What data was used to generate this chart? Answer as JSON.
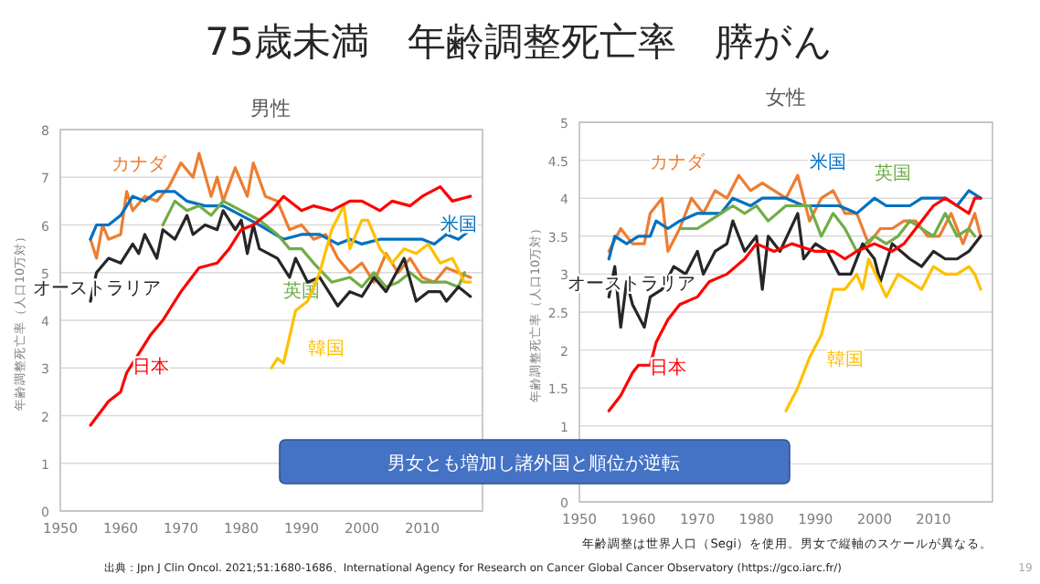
{
  "chart_data": [
    {
      "type": "line",
      "title": "男性",
      "ylabel": "年齢調整死亡率（人口10万対）",
      "xlim": [
        1950,
        2020
      ],
      "xticks": [
        1950,
        1960,
        1970,
        1980,
        1990,
        2000,
        2010
      ],
      "ylim": [
        0,
        8
      ],
      "yticks": [
        0,
        1,
        2,
        3,
        4,
        5,
        6,
        7,
        8
      ],
      "grid": "y",
      "legend": false,
      "marker": "none",
      "line_style": "solid",
      "annotations": [
        "75歳未満　年齢調整死亡率　膵がん",
        "男女とも増加し諸外国と順位が逆転"
      ],
      "series": [
        {
          "name": "カナダ",
          "color": "#ed7d31",
          "x": [
            1955,
            1956,
            1957,
            1958,
            1960,
            1961,
            1962,
            1964,
            1966,
            1968,
            1970,
            1972,
            1973,
            1975,
            1976,
            1977,
            1979,
            1981,
            1982,
            1984,
            1986,
            1988,
            1990,
            1992,
            1994,
            1996,
            1998,
            2000,
            2002,
            2004,
            2006,
            2008,
            2010,
            2012,
            2014,
            2016,
            2018
          ],
          "values": [
            5.7,
            5.3,
            6.0,
            5.7,
            5.8,
            6.7,
            6.3,
            6.6,
            6.5,
            6.8,
            7.3,
            7.0,
            7.5,
            6.6,
            7.0,
            6.5,
            7.2,
            6.6,
            7.3,
            6.6,
            6.5,
            5.9,
            6.0,
            5.7,
            5.8,
            5.3,
            5.0,
            5.2,
            4.8,
            5.4,
            5.0,
            5.3,
            4.9,
            4.8,
            5.1,
            5.0,
            4.9
          ]
        },
        {
          "name": "米国",
          "color": "#0070c0",
          "x": [
            1955,
            1956,
            1958,
            1960,
            1962,
            1964,
            1966,
            1969,
            1971,
            1974,
            1977,
            1980,
            1983,
            1987,
            1990,
            1993,
            1996,
            1998,
            2000,
            2003,
            2006,
            2010,
            2012,
            2014,
            2016,
            2018
          ],
          "values": [
            5.7,
            6.0,
            6.0,
            6.2,
            6.6,
            6.5,
            6.7,
            6.7,
            6.5,
            6.4,
            6.4,
            6.2,
            6.0,
            5.7,
            5.8,
            5.8,
            5.6,
            5.7,
            5.6,
            5.7,
            5.7,
            5.7,
            5.6,
            5.8,
            5.7,
            5.9
          ]
        },
        {
          "name": "英国",
          "color": "#70ad47",
          "x": [
            1967,
            1969,
            1971,
            1973,
            1975,
            1977,
            1980,
            1983,
            1986,
            1988,
            1990,
            1992,
            1995,
            1998,
            2000,
            2002,
            2004,
            2006,
            2008,
            2010,
            2012,
            2014,
            2016,
            2017
          ],
          "values": [
            6.0,
            6.5,
            6.3,
            6.4,
            6.2,
            6.5,
            6.3,
            6.1,
            5.8,
            5.5,
            5.5,
            5.2,
            4.8,
            4.9,
            4.7,
            5.0,
            4.7,
            4.8,
            5.0,
            4.8,
            4.8,
            4.8,
            4.7,
            5.0
          ]
        },
        {
          "name": "オーストラリア",
          "color": "#262626",
          "x": [
            1955,
            1956,
            1958,
            1960,
            1962,
            1963,
            1964,
            1966,
            1967,
            1969,
            1971,
            1972,
            1974,
            1976,
            1977,
            1979,
            1980,
            1981,
            1982,
            1983,
            1986,
            1988,
            1989,
            1991,
            1993,
            1995,
            1996,
            1998,
            2000,
            2002,
            2004,
            2007,
            2009,
            2011,
            2013,
            2014,
            2016,
            2018
          ],
          "values": [
            4.4,
            5.0,
            5.3,
            5.2,
            5.6,
            5.4,
            5.8,
            5.3,
            5.9,
            5.7,
            6.2,
            5.8,
            6.0,
            5.9,
            6.3,
            5.9,
            6.1,
            5.4,
            6.0,
            5.5,
            5.3,
            4.9,
            5.3,
            4.8,
            4.9,
            4.5,
            4.3,
            4.6,
            4.5,
            4.9,
            4.6,
            5.3,
            4.4,
            4.6,
            4.6,
            4.4,
            4.7,
            4.5
          ]
        },
        {
          "name": "韓国",
          "color": "#ffc000",
          "x": [
            1985,
            1986,
            1987,
            1989,
            1991,
            1993,
            1995,
            1997,
            1998,
            2000,
            2001,
            2003,
            2005,
            2007,
            2009,
            2011,
            2013,
            2015,
            2017,
            2018
          ],
          "values": [
            3.0,
            3.2,
            3.1,
            4.2,
            4.4,
            5.0,
            5.9,
            6.4,
            5.5,
            6.1,
            6.1,
            5.5,
            5.2,
            5.5,
            5.4,
            5.6,
            5.2,
            5.3,
            4.8,
            4.8
          ]
        },
        {
          "name": "日本",
          "color": "#ff0000",
          "x": [
            1955,
            1958,
            1960,
            1961,
            1963,
            1965,
            1967,
            1970,
            1973,
            1976,
            1978,
            1980,
            1982,
            1985,
            1987,
            1990,
            1992,
            1995,
            1998,
            2000,
            2003,
            2005,
            2008,
            2010,
            2013,
            2015,
            2018
          ],
          "values": [
            1.8,
            2.3,
            2.5,
            2.9,
            3.3,
            3.7,
            4.0,
            4.6,
            5.1,
            5.2,
            5.5,
            5.9,
            6.0,
            6.3,
            6.6,
            6.3,
            6.4,
            6.3,
            6.5,
            6.5,
            6.3,
            6.5,
            6.4,
            6.6,
            6.8,
            6.5,
            6.6
          ]
        }
      ]
    },
    {
      "type": "line",
      "title": "女性",
      "ylabel": "年齢調整死亡率（人口10万対）",
      "xlim": [
        1950,
        2020
      ],
      "xticks": [
        1950,
        1960,
        1970,
        1980,
        1990,
        2000,
        2010
      ],
      "ylim": [
        0,
        5
      ],
      "yticks": [
        0,
        {
          "value": 0.5,
          "label": null
        },
        1,
        1.5,
        2,
        2.5,
        3,
        3.5,
        4,
        4.5,
        5
      ],
      "grid": "y",
      "legend": false,
      "marker": "none",
      "line_style": "solid",
      "annotations": [
        "年齢調整は世界人口（Segi）を使用。男女で縦軸のスケールが異なる。",
        "出典：Jpn J Clin Oncol. 2021;51:1680-1686、International Agency for Research on Cancer Global Cancer Observatory (https://gco.iarc.fr/)",
        "19"
      ],
      "series": [
        {
          "name": "カナダ",
          "color": "#ed7d31",
          "x": [
            1955,
            1957,
            1959,
            1961,
            1962,
            1964,
            1965,
            1967,
            1969,
            1971,
            1973,
            1975,
            1977,
            1979,
            1981,
            1983,
            1985,
            1987,
            1989,
            1991,
            1993,
            1995,
            1997,
            1999,
            2001,
            2003,
            2005,
            2007,
            2009,
            2011,
            2013,
            2015,
            2017,
            2018
          ],
          "values": [
            3.3,
            3.6,
            3.4,
            3.4,
            3.8,
            4.0,
            3.3,
            3.6,
            4.0,
            3.8,
            4.1,
            4.0,
            4.3,
            4.1,
            4.2,
            4.1,
            4.0,
            4.3,
            3.7,
            4.0,
            4.1,
            3.8,
            3.8,
            3.4,
            3.6,
            3.6,
            3.7,
            3.7,
            3.5,
            3.5,
            3.8,
            3.4,
            3.8,
            3.5
          ]
        },
        {
          "name": "米国",
          "color": "#0070c0",
          "x": [
            1955,
            1956,
            1958,
            1960,
            1962,
            1963,
            1965,
            1967,
            1970,
            1974,
            1976,
            1979,
            1981,
            1985,
            1988,
            1991,
            1994,
            1997,
            2000,
            2002,
            2006,
            2008,
            2012,
            2014,
            2016,
            2018
          ],
          "values": [
            3.2,
            3.5,
            3.4,
            3.5,
            3.5,
            3.7,
            3.6,
            3.7,
            3.8,
            3.8,
            4.0,
            3.9,
            4.0,
            4.0,
            3.9,
            3.9,
            3.9,
            3.8,
            4.0,
            3.9,
            3.9,
            4.0,
            4.0,
            3.9,
            4.1,
            4.0
          ]
        },
        {
          "name": "英国",
          "color": "#70ad47",
          "x": [
            1967,
            1970,
            1972,
            1974,
            1976,
            1978,
            1980,
            1982,
            1985,
            1989,
            1991,
            1993,
            1995,
            1997,
            2000,
            2002,
            2004,
            2006,
            2008,
            2010,
            2012,
            2014,
            2016,
            2017
          ],
          "values": [
            3.6,
            3.6,
            3.7,
            3.8,
            3.9,
            3.8,
            3.9,
            3.7,
            3.9,
            3.9,
            3.5,
            3.8,
            3.6,
            3.3,
            3.5,
            3.4,
            3.5,
            3.7,
            3.6,
            3.5,
            3.8,
            3.5,
            3.6,
            3.5
          ]
        },
        {
          "name": "オーストラリア",
          "color": "#262626",
          "x": [
            1955,
            1956,
            1957,
            1958,
            1959,
            1961,
            1962,
            1964,
            1966,
            1968,
            1970,
            1971,
            1973,
            1975,
            1976,
            1978,
            1980,
            1981,
            1982,
            1984,
            1987,
            1988,
            1990,
            1992,
            1994,
            1996,
            1998,
            2000,
            2001,
            2003,
            2006,
            2008,
            2010,
            2012,
            2014,
            2016,
            2018
          ],
          "values": [
            2.7,
            3.1,
            2.3,
            2.9,
            2.6,
            2.3,
            2.7,
            2.8,
            3.1,
            3.0,
            3.3,
            3.0,
            3.3,
            3.4,
            3.7,
            3.3,
            3.5,
            2.8,
            3.5,
            3.3,
            3.8,
            3.2,
            3.4,
            3.3,
            3.0,
            3.0,
            3.4,
            3.2,
            2.9,
            3.4,
            3.2,
            3.1,
            3.3,
            3.2,
            3.2,
            3.3,
            3.5
          ]
        },
        {
          "name": "韓国",
          "color": "#ffc000",
          "x": [
            1985,
            1987,
            1989,
            1991,
            1993,
            1995,
            1997,
            1998,
            1999,
            2002,
            2004,
            2006,
            2008,
            2010,
            2012,
            2014,
            2016,
            2017,
            2018
          ],
          "values": [
            1.2,
            1.5,
            1.9,
            2.2,
            2.8,
            2.8,
            3.0,
            2.8,
            3.2,
            2.7,
            3.0,
            2.9,
            2.8,
            3.1,
            3.0,
            3.0,
            3.1,
            3.0,
            2.8
          ]
        },
        {
          "name": "日本",
          "color": "#ff0000",
          "x": [
            1955,
            1957,
            1959,
            1960,
            1962,
            1963,
            1965,
            1967,
            1970,
            1972,
            1975,
            1978,
            1980,
            1983,
            1986,
            1990,
            1993,
            1995,
            1997,
            2000,
            2003,
            2005,
            2008,
            2010,
            2012,
            2014,
            2016,
            2017,
            2018
          ],
          "values": [
            1.2,
            1.4,
            1.7,
            1.8,
            1.8,
            2.1,
            2.4,
            2.6,
            2.7,
            2.9,
            3.0,
            3.2,
            3.4,
            3.3,
            3.4,
            3.3,
            3.3,
            3.2,
            3.3,
            3.4,
            3.3,
            3.4,
            3.7,
            3.9,
            4.0,
            3.9,
            3.8,
            4.0,
            4.0
          ]
        }
      ]
    }
  ]
}
